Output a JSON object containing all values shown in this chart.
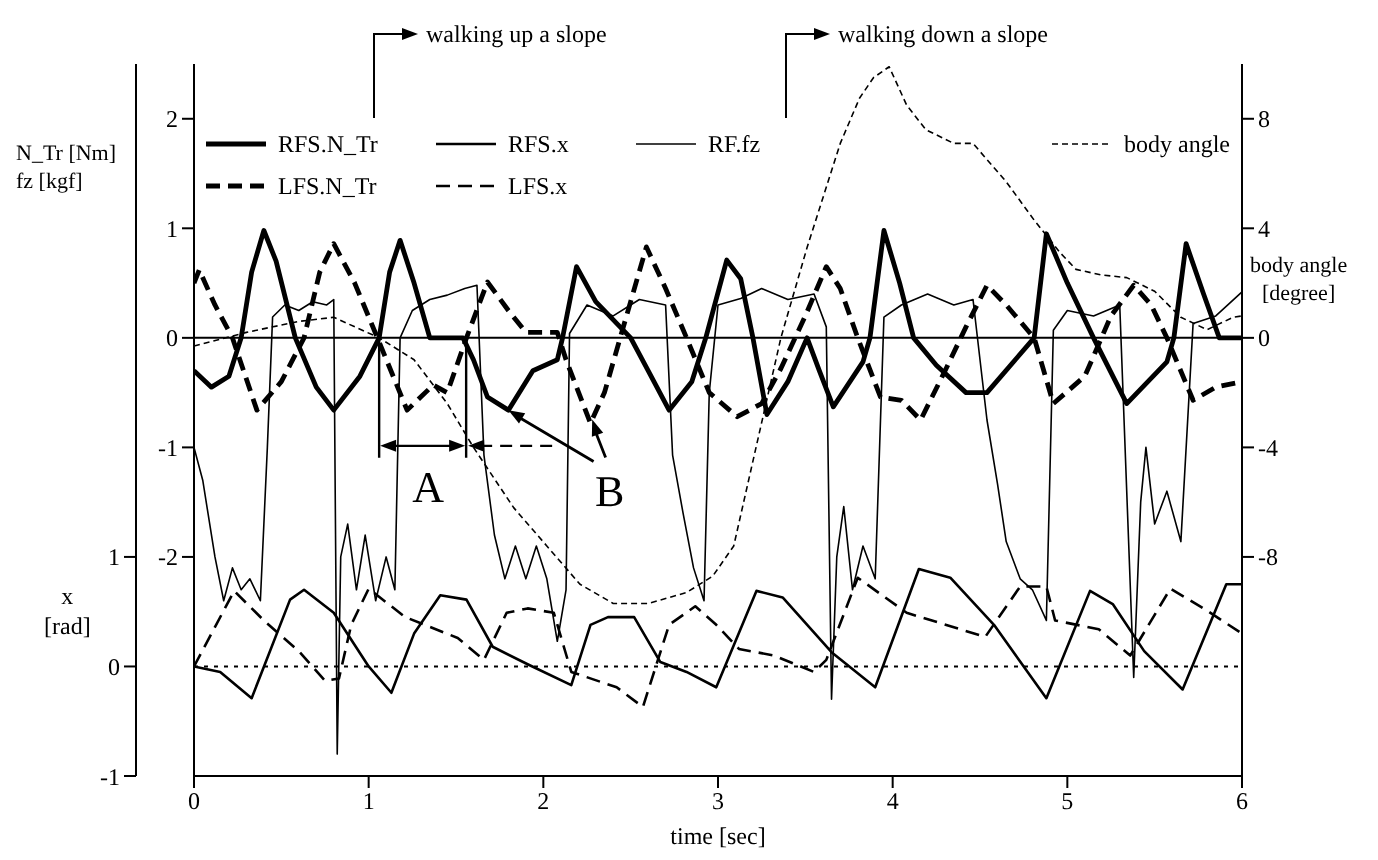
{
  "chart_data": {
    "type": "line",
    "xlabel": "time [sec]",
    "ylabel": "N_Tr [Nm]\nfz [kgf]",
    "y2label": "body angle\n[degree]",
    "y3label": "x\n[rad]",
    "xlim": [
      0,
      6
    ],
    "xticks": [
      0,
      1,
      2,
      3,
      4,
      5,
      6
    ],
    "ylim": [
      -4,
      2.5
    ],
    "yticks": [
      -2,
      -1,
      0,
      1,
      2
    ],
    "y2lim": [
      -16,
      10
    ],
    "y2ticks": [
      -8,
      -4,
      0,
      4,
      8
    ],
    "y3lim": [
      -1,
      5.5
    ],
    "y3ticks": [
      -1,
      0,
      1
    ],
    "legend": "top left",
    "marker": "none",
    "series": [
      {
        "name": "RFS.N_Tr",
        "color": "#000000",
        "line_style": "solid",
        "x": [
          0,
          0.1,
          0.2,
          0.27,
          0.33,
          0.4,
          0.47,
          0.58,
          0.7,
          0.8,
          0.95,
          1.06,
          1.12,
          1.18,
          1.26,
          1.35,
          1.54,
          1.6,
          1.68,
          1.8,
          1.94,
          2.08,
          2.11,
          2.19,
          2.3,
          2.5,
          2.6,
          2.72,
          2.85,
          2.93,
          3.05,
          3.13,
          3.2,
          3.28,
          3.4,
          3.51,
          3.58,
          3.66,
          3.83,
          3.87,
          3.95,
          4.04,
          4.12,
          4.25,
          4.42,
          4.54,
          4.81,
          4.88,
          5.0,
          5.15,
          5.34,
          5.57,
          5.61,
          5.68,
          5.78,
          5.87,
          6
        ],
        "values": [
          -0.3,
          -0.45,
          -0.35,
          0,
          0.6,
          0.98,
          0.7,
          0,
          -0.45,
          -0.66,
          -0.35,
          0,
          0.6,
          0.89,
          0.5,
          0,
          0,
          -0.2,
          -0.54,
          -0.66,
          -0.3,
          -0.2,
          0,
          0.65,
          0.33,
          0,
          -0.3,
          -0.66,
          -0.4,
          0,
          0.71,
          0.54,
          0,
          -0.7,
          -0.4,
          0,
          -0.3,
          -0.63,
          -0.22,
          0,
          0.98,
          0.5,
          0,
          -0.25,
          -0.5,
          -0.5,
          0,
          0.95,
          0.5,
          0,
          -0.6,
          -0.22,
          0,
          0.86,
          0.4,
          0,
          0
        ]
      },
      {
        "name": "RFS.x",
        "color": "#000000",
        "line_style": "solid",
        "axis": "y3",
        "x": [
          0,
          0.15,
          0.33,
          0.55,
          0.63,
          0.8,
          1.0,
          1.13,
          1.26,
          1.41,
          1.56,
          1.71,
          1.91,
          2.16,
          2.27,
          2.37,
          2.52,
          2.67,
          2.82,
          2.99,
          3.22,
          3.37,
          3.65,
          3.9,
          4.15,
          4.33,
          4.58,
          4.88,
          5.13,
          5.26,
          5.44,
          5.66,
          5.91,
          6
        ],
        "values": [
          0,
          -0.05,
          -0.29,
          0.61,
          0.7,
          0.49,
          0,
          -0.24,
          0.3,
          0.65,
          0.61,
          0.18,
          0.02,
          -0.17,
          0.38,
          0.45,
          0.45,
          0.04,
          -0.05,
          -0.19,
          0.69,
          0.63,
          0.13,
          -0.19,
          0.89,
          0.81,
          0.38,
          -0.29,
          0.69,
          0.57,
          0.14,
          -0.21,
          0.75,
          0.75
        ]
      },
      {
        "name": "RF.fz",
        "color": "#000000",
        "line_style": "solid",
        "x": [
          0,
          0.05,
          0.12,
          0.17,
          0.22,
          0.27,
          0.32,
          0.38,
          0.42,
          0.45,
          0.52,
          0.6,
          0.68,
          0.76,
          0.8,
          0.82,
          0.84,
          0.88,
          0.93,
          0.98,
          1.04,
          1.1,
          1.15,
          1.18,
          1.25,
          1.35,
          1.45,
          1.55,
          1.62,
          1.66,
          1.72,
          1.78,
          1.84,
          1.9,
          1.96,
          2.02,
          2.08,
          2.13,
          2.15,
          2.25,
          2.4,
          2.55,
          2.7,
          2.74,
          2.8,
          2.86,
          2.92,
          2.95,
          3.0,
          3.13,
          3.25,
          3.4,
          3.55,
          3.62,
          3.65,
          3.68,
          3.72,
          3.77,
          3.83,
          3.9,
          3.95,
          4.05,
          4.2,
          4.35,
          4.46,
          4.54,
          4.6,
          4.65,
          4.73,
          4.8,
          4.88,
          4.92,
          5.0,
          5.15,
          5.3,
          5.38,
          5.42,
          5.45,
          5.5,
          5.57,
          5.65,
          5.72,
          5.85,
          6
        ],
        "values": [
          -1.0,
          -1.3,
          -2.0,
          -2.4,
          -2.1,
          -2.3,
          -2.2,
          -2.4,
          -1.0,
          0.19,
          0.3,
          0.25,
          0.33,
          0.3,
          0.35,
          -3.8,
          -2.0,
          -1.7,
          -2.3,
          -1.8,
          -2.4,
          -2.0,
          -2.3,
          0,
          0.25,
          0.35,
          0.39,
          0.45,
          0.48,
          -1.07,
          -1.8,
          -2.2,
          -1.9,
          -2.2,
          -1.9,
          -2.2,
          -2.77,
          -2.3,
          0.04,
          0.3,
          0.2,
          0.35,
          0.3,
          -1.07,
          -1.6,
          -2.1,
          -2.4,
          -0.5,
          0.3,
          0.36,
          0.45,
          0.35,
          0.4,
          0.1,
          -3.3,
          -2.0,
          -1.54,
          -2.3,
          -1.9,
          -2.2,
          0.19,
          0.3,
          0.4,
          0.3,
          0.35,
          -0.75,
          -1.33,
          -1.86,
          -2.2,
          -2.3,
          -2.58,
          0.07,
          0.25,
          0.2,
          0.3,
          -3.1,
          -1.5,
          -1.0,
          -1.7,
          -1.4,
          -1.86,
          0.13,
          0.2,
          0.42
        ]
      },
      {
        "name": "body angle",
        "color": "#000000",
        "line_style": "dashed",
        "axis": "y2",
        "x": [
          0,
          0.3,
          0.6,
          0.8,
          1.06,
          1.26,
          1.45,
          1.6,
          1.83,
          2.02,
          2.21,
          2.4,
          2.6,
          2.82,
          2.97,
          3.09,
          3.2,
          3.36,
          3.51,
          3.7,
          3.81,
          3.89,
          3.98,
          4.08,
          4.19,
          4.35,
          4.46,
          4.65,
          4.81,
          4.96,
          5.05,
          5.19,
          5.34,
          5.5,
          5.65,
          5.8,
          5.95,
          6
        ],
        "values": [
          -0.3,
          0.2,
          0.6,
          0.75,
          0,
          -0.8,
          -2.4,
          -4.0,
          -6.2,
          -7.6,
          -9.0,
          -9.7,
          -9.7,
          -9.3,
          -8.7,
          -7.6,
          -4.5,
          0,
          3.3,
          7.1,
          8.75,
          9.5,
          9.9,
          8.5,
          7.6,
          7.1,
          7.1,
          5.7,
          4.3,
          3.1,
          2.5,
          2.3,
          2.2,
          1.7,
          0.75,
          0.3,
          0.75,
          0.8
        ]
      },
      {
        "name": "LFS.N_Tr",
        "color": "#000000",
        "line_style": "dashed",
        "x": [
          0,
          0.03,
          0.12,
          0.22,
          0.36,
          0.5,
          0.63,
          0.72,
          0.8,
          0.92,
          1.05,
          1.22,
          1.37,
          1.45,
          1.56,
          1.68,
          1.8,
          1.9,
          2.08,
          2.13,
          2.27,
          2.35,
          2.44,
          2.59,
          2.7,
          2.82,
          2.95,
          3.11,
          3.25,
          3.36,
          3.5,
          3.62,
          3.7,
          3.8,
          3.93,
          4.05,
          4.16,
          4.3,
          4.42,
          4.54,
          4.65,
          4.81,
          4.92,
          5.1,
          5.25,
          5.38,
          5.48,
          5.57,
          5.72,
          5.85,
          6
        ],
        "values": [
          0.5,
          0.62,
          0.3,
          0,
          -0.66,
          -0.4,
          0,
          0.6,
          0.86,
          0.5,
          0,
          -0.66,
          -0.43,
          -0.5,
          0,
          0.51,
          0.25,
          0.05,
          0.05,
          -0.2,
          -0.78,
          -0.5,
          0,
          0.83,
          0.45,
          0,
          -0.5,
          -0.72,
          -0.6,
          -0.28,
          0.2,
          0.65,
          0.45,
          0,
          -0.54,
          -0.57,
          -0.75,
          -0.3,
          0.1,
          0.48,
          0.3,
          0,
          -0.6,
          -0.35,
          0.2,
          0.48,
          0.3,
          0,
          -0.57,
          -0.45,
          -0.4
        ]
      },
      {
        "name": "LFS.x",
        "color": "#000000",
        "line_style": "dashed",
        "axis": "y3",
        "x": [
          0,
          0.23,
          0.4,
          0.6,
          0.75,
          0.83,
          0.9,
          1.0,
          1.21,
          1.51,
          1.66,
          1.79,
          1.91,
          2.06,
          2.16,
          2.42,
          2.57,
          2.72,
          2.87,
          2.99,
          3.12,
          3.32,
          3.55,
          3.62,
          3.8,
          4.08,
          4.53,
          4.73,
          4.88,
          4.93,
          5.18,
          5.36,
          5.59,
          5.79,
          6
        ],
        "values": [
          0,
          0.69,
          0.42,
          0.14,
          -0.13,
          -0.11,
          0.38,
          0.71,
          0.45,
          0.26,
          0.06,
          0.49,
          0.53,
          0.49,
          -0.05,
          -0.19,
          -0.37,
          0.38,
          0.55,
          0.38,
          0.16,
          0.1,
          -0.05,
          0.06,
          0.81,
          0.49,
          0.27,
          0.73,
          0.73,
          0.42,
          0.34,
          0.1,
          0.71,
          0.52,
          0.3
        ]
      }
    ],
    "ref_lines": [
      {
        "axis": "y",
        "value": 0,
        "color": "#000000",
        "line_style": "solid"
      },
      {
        "axis": "y3",
        "value": 0,
        "color": "#000000",
        "line_style": "dotted"
      }
    ],
    "annotations": [
      "walking up a slope",
      "walking down a slope",
      {
        "text": "A",
        "x": 1.06,
        "y": 0
      },
      {
        "text": "B",
        "x": 1.8,
        "y": -0.66
      }
    ]
  }
}
